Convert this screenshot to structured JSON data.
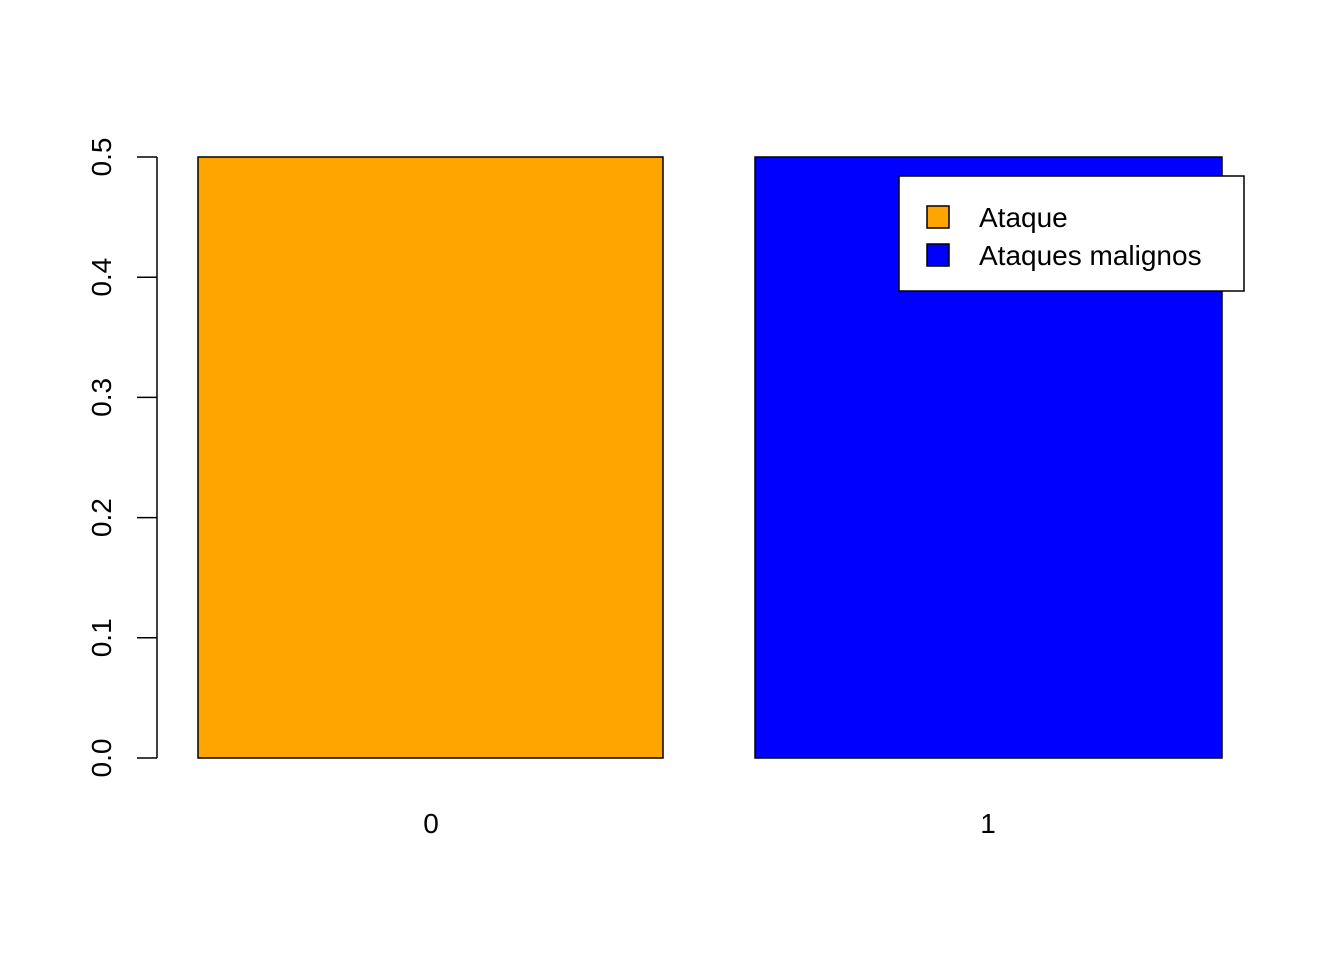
{
  "chart_data": {
    "type": "bar",
    "title": "",
    "xlabel": "",
    "ylabel": "",
    "categories": [
      "0",
      "1"
    ],
    "values": [
      0.5,
      0.5
    ],
    "ylim": [
      0,
      0.5
    ],
    "yticks": [
      0.0,
      0.1,
      0.2,
      0.3,
      0.4,
      0.5
    ],
    "ytick_labels": [
      "0.0",
      "0.1",
      "0.2",
      "0.3",
      "0.4",
      "0.5"
    ],
    "bar_colors": [
      "#FFA500",
      "#0000FF"
    ],
    "grid": false,
    "legend": {
      "placement": "top-right",
      "entries": [
        {
          "label": "Ataque",
          "color": "#FFA500"
        },
        {
          "label": "Ataques malignos",
          "color": "#0000FF"
        }
      ]
    }
  }
}
